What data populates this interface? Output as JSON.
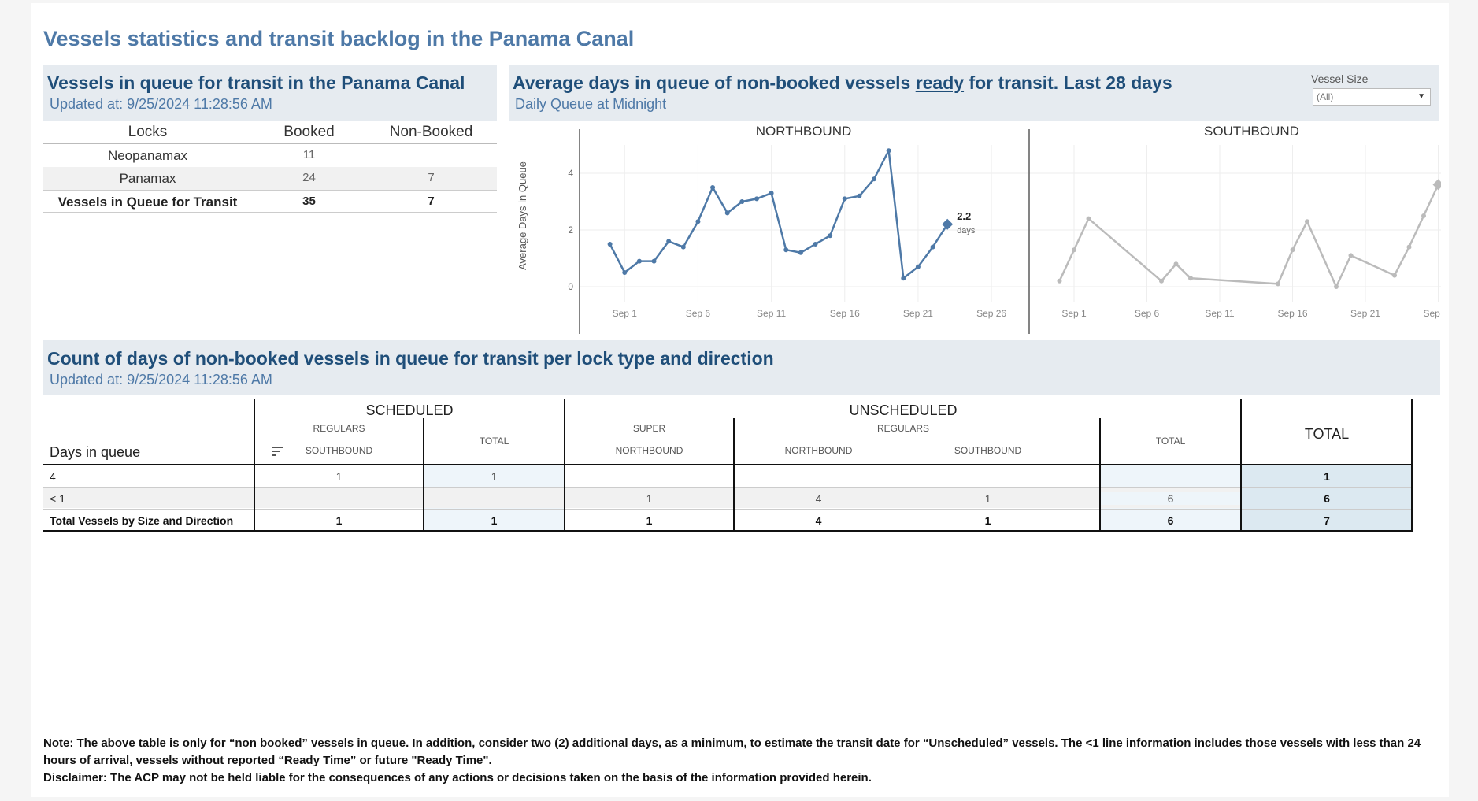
{
  "page": {
    "title": "Vessels statistics and transit backlog in the Panama Canal"
  },
  "queue_panel": {
    "title": "Vessels in queue for transit in the Panama Canal",
    "updated": "Updated at:  9/25/2024 11:28:56 AM",
    "headers": [
      "Locks",
      "Booked",
      "Non-Booked"
    ],
    "rows": [
      {
        "lock": "Neopanamax",
        "booked": "11",
        "non_booked": ""
      },
      {
        "lock": "Panamax",
        "booked": "24",
        "non_booked": "7"
      }
    ],
    "total": {
      "lock": "Vessels in Queue for Transit",
      "booked": "35",
      "non_booked": "7"
    }
  },
  "days_panel": {
    "title_pre": "Average days in queue of non-booked vessels ",
    "title_link": "ready",
    "title_post": " for transit. Last 28 days",
    "subtitle": "Daily Queue at Midnight",
    "filter_label": "Vessel Size",
    "filter_value": "(All)"
  },
  "chart_data": {
    "type": "line",
    "ylabel": "Average Days in Queue",
    "yticks": [
      0,
      2,
      4
    ],
    "xticks": [
      "Sep 1",
      "Sep 6",
      "Sep 11",
      "Sep 16",
      "Sep 21",
      "Sep 26"
    ],
    "grid": true,
    "panels": [
      {
        "name": "NORTHBOUND",
        "color": "#4e79a7",
        "x": [
          -1,
          0,
          1,
          2,
          3,
          4,
          5,
          6,
          7,
          8,
          9,
          10,
          11,
          12,
          13,
          14,
          15,
          16,
          17,
          18,
          19,
          20,
          21,
          22
        ],
        "values": [
          1.5,
          0.5,
          0.9,
          0.9,
          1.6,
          1.4,
          2.3,
          3.5,
          2.6,
          3.0,
          3.1,
          3.3,
          1.3,
          1.2,
          1.5,
          1.8,
          3.1,
          3.2,
          3.8,
          4.8,
          0.3,
          0.7,
          1.4,
          2.2
        ],
        "last_label": "2.2",
        "last_unit": "days"
      },
      {
        "name": "SOUTHBOUND",
        "color": "#bbbbbb",
        "x": [
          -1,
          0,
          1,
          6,
          7,
          8,
          14,
          15,
          16,
          18,
          19,
          22,
          23,
          24,
          25
        ],
        "values": [
          0.2,
          1.3,
          2.4,
          0.2,
          0.8,
          0.3,
          0.1,
          1.3,
          2.3,
          0.0,
          1.1,
          0.4,
          1.4,
          2.5,
          3.6
        ],
        "last_label": "3.6",
        "last_unit": "days"
      }
    ]
  },
  "count_panel": {
    "title": "Count of days of non-booked vessels in queue for transit per lock type and direction",
    "updated": "Updated at:  9/25/2024 11:28:56 AM",
    "groups": {
      "scheduled": "SCHEDULED",
      "unscheduled": "UNSCHEDULED",
      "total": "TOTAL"
    },
    "sub_headers": {
      "regulars": "REGULARS",
      "super": "SUPER",
      "total": "TOTAL",
      "southbound": "SOUTHBOUND",
      "northbound": "NORTHBOUND"
    },
    "row_header": "Days in queue",
    "rows": [
      {
        "label": "4",
        "sched_regulars_sb": "1",
        "sched_total": "1",
        "unsched_super_nb": "",
        "unsched_regulars_nb": "",
        "unsched_regulars_sb": "",
        "unsched_total": "",
        "total": "1"
      },
      {
        "label": "< 1",
        "sched_regulars_sb": "",
        "sched_total": "",
        "unsched_super_nb": "1",
        "unsched_regulars_nb": "4",
        "unsched_regulars_sb": "1",
        "unsched_total": "6",
        "total": "6"
      },
      {
        "label": "Total Vessels by Size and Direction",
        "sched_regulars_sb": "1",
        "sched_total": "1",
        "unsched_super_nb": "1",
        "unsched_regulars_nb": "4",
        "unsched_regulars_sb": "1",
        "unsched_total": "6",
        "total": "7"
      }
    ]
  },
  "notes": {
    "note": "Note:  The above table is only for “non booked” vessels in queue. In addition, consider two (2) additional days, as a minimum, to estimate the transit date for “Unscheduled” vessels.  The <1 line information includes those vessels with less than 24 hours of arrival, vessels without reported “Ready Time” or future \"Ready Time\".",
    "disclaimer": "Disclaimer: The ACP may not be held liable for the consequences of any actions or decisions taken on the basis of the information provided herein."
  }
}
